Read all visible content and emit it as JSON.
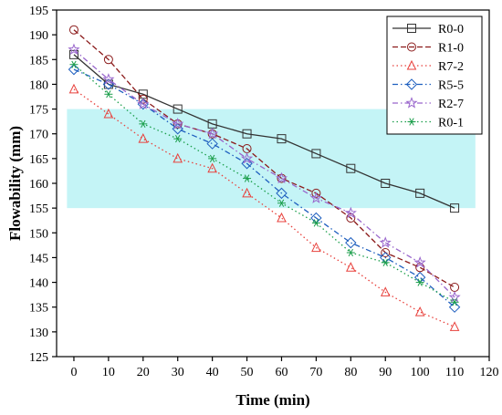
{
  "chart_data": {
    "type": "line",
    "xlabel": "Time (min)",
    "ylabel": "Flowability (mm)",
    "xlim": [
      -5,
      120
    ],
    "ylim": [
      125,
      195
    ],
    "xticks": [
      0,
      10,
      20,
      30,
      40,
      50,
      60,
      70,
      80,
      90,
      100,
      110,
      120
    ],
    "yticks": [
      125,
      130,
      135,
      140,
      145,
      150,
      155,
      160,
      165,
      170,
      175,
      180,
      185,
      190,
      195
    ],
    "x": [
      0,
      10,
      20,
      30,
      40,
      50,
      60,
      70,
      80,
      90,
      100,
      110
    ],
    "band": {
      "y_from": 155,
      "y_to": 175,
      "x_from": -2,
      "x_to": 116,
      "color": "#c4f4f6"
    },
    "legend_position": "top-right",
    "grid": false,
    "series": [
      {
        "name": "R0-0",
        "color": "#333333",
        "dash": "solid",
        "marker": "square",
        "values": [
          186,
          180,
          178,
          175,
          172,
          170,
          169,
          166,
          163,
          160,
          158,
          155
        ]
      },
      {
        "name": "R1-0",
        "color": "#8b1a1a",
        "dash": "dashed",
        "marker": "circle",
        "values": [
          191,
          185,
          177,
          172,
          170,
          167,
          161,
          158,
          153,
          146,
          143,
          139
        ]
      },
      {
        "name": "R7-2",
        "color": "#e8413c",
        "dash": "dotted",
        "marker": "triangle",
        "values": [
          179,
          174,
          169,
          165,
          163,
          158,
          153,
          147,
          143,
          138,
          134,
          131
        ]
      },
      {
        "name": "R5-5",
        "color": "#1f5fbf",
        "dash": "dashdot",
        "marker": "diamond",
        "values": [
          183,
          180,
          176,
          171,
          168,
          164,
          158,
          153,
          148,
          145,
          141,
          135
        ]
      },
      {
        "name": "R2-7",
        "color": "#9966cc",
        "dash": "dashdot",
        "marker": "star",
        "values": [
          187,
          181,
          176,
          172,
          170,
          165,
          161,
          157,
          154,
          148,
          144,
          137
        ]
      },
      {
        "name": "R0-1",
        "color": "#1a9e4a",
        "dash": "dotted",
        "marker": "asterisk",
        "values": [
          184,
          178,
          172,
          169,
          165,
          161,
          156,
          152,
          146,
          144,
          140,
          136
        ]
      }
    ]
  }
}
